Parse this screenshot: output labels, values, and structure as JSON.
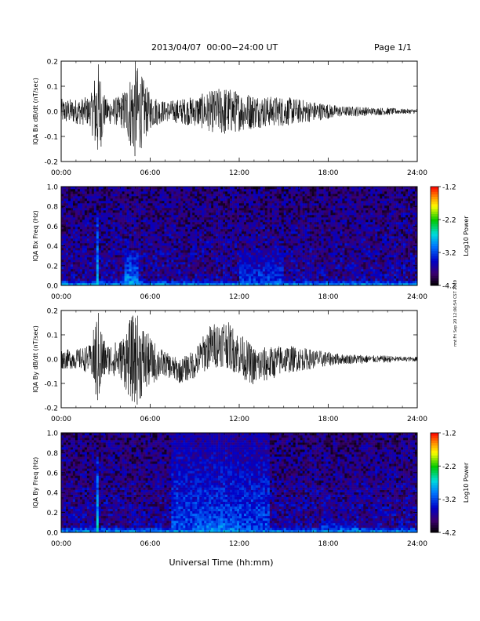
{
  "header": {
    "title": "2013/04/07  00:00−24:00 UT",
    "page": "Page 1/1",
    "xlabel": "Universal Time (hh:mm)",
    "side_stamp": "rmt Fri Sep 20 12:06:54 CST 2019"
  },
  "chart_data": [
    {
      "type": "line",
      "title": "",
      "ylabel": "IQA Bx dB/dt (nT/sec)",
      "xlabel": "",
      "xlim": [
        0,
        24
      ],
      "ylim": [
        -0.2,
        0.2
      ],
      "xticks": [
        "00:00",
        "06:00",
        "12:00",
        "18:00",
        "24:00"
      ],
      "yticks": [
        "-0.2",
        "-0.1",
        "0.0",
        "0.1",
        "0.2"
      ],
      "series": [
        {
          "x": [
            0,
            1,
            2,
            2.4,
            2.5,
            3,
            4,
            4.5,
            5,
            6,
            7,
            8,
            9,
            10,
            11,
            12,
            13,
            14,
            15,
            16,
            17,
            18,
            19,
            20,
            21,
            22,
            23,
            24
          ],
          "envelope": [
            0.05,
            0.05,
            0.06,
            0.2,
            0.2,
            0.05,
            0.06,
            0.12,
            0.2,
            0.07,
            0.04,
            0.05,
            0.06,
            0.08,
            0.1,
            0.08,
            0.07,
            0.06,
            0.06,
            0.05,
            0.04,
            0.03,
            0.02,
            0.02,
            0.015,
            0.015,
            0.01,
            0.01
          ]
        }
      ]
    },
    {
      "type": "heatmap",
      "title": "",
      "ylabel": "IQA Bx Freq (Hz)",
      "xlabel": "",
      "xlim": [
        0,
        24
      ],
      "ylim": [
        0.0,
        1.0
      ],
      "xticks": [
        "00:00",
        "06:00",
        "12:00",
        "18:00",
        "24:00"
      ],
      "yticks": [
        "0.0",
        "0.2",
        "0.4",
        "0.6",
        "0.8",
        "1.0"
      ],
      "colorbar": {
        "label": "Log10 Power",
        "range": [
          -4.2,
          -1.2
        ],
        "ticks": [
          "-1.2",
          "-2.2",
          "-3.2",
          "-4.2"
        ]
      },
      "features": [
        {
          "t_start": 2.3,
          "t_end": 2.5,
          "f_top": 0.7,
          "power": -2.6
        },
        {
          "t_start": 4.2,
          "t_end": 5.2,
          "f_top": 0.35,
          "power": -2.9
        },
        {
          "t_start": 12.0,
          "t_end": 15.0,
          "f_top": 0.35,
          "power": -3.2
        },
        {
          "t_start": 0.0,
          "t_end": 24.0,
          "f_top": 0.05,
          "power": -2.8
        }
      ]
    },
    {
      "type": "line",
      "title": "",
      "ylabel": "IQA By dB/dt (nT/sec)",
      "xlabel": "",
      "xlim": [
        0,
        24
      ],
      "ylim": [
        -0.2,
        0.2
      ],
      "xticks": [
        "00:00",
        "06:00",
        "12:00",
        "18:00",
        "24:00"
      ],
      "yticks": [
        "-0.2",
        "-0.1",
        "0.0",
        "0.1",
        "0.2"
      ],
      "series": [
        {
          "x": [
            0,
            1,
            2,
            2.4,
            2.5,
            3,
            4,
            4.5,
            5,
            6,
            7,
            8,
            9,
            10,
            11,
            12,
            13,
            14,
            15,
            16,
            17,
            18,
            19,
            20,
            21,
            22,
            23,
            24
          ],
          "envelope": [
            0.04,
            0.04,
            0.06,
            0.2,
            0.2,
            0.06,
            0.08,
            0.15,
            0.2,
            0.1,
            0.05,
            0.05,
            0.06,
            0.09,
            0.1,
            0.09,
            0.08,
            0.07,
            0.06,
            0.05,
            0.04,
            0.03,
            0.02,
            0.02,
            0.015,
            0.015,
            0.01,
            0.01
          ],
          "baseline": [
            0,
            0,
            0,
            0,
            0,
            0,
            0,
            0,
            0,
            -0.01,
            -0.02,
            -0.05,
            -0.02,
            0.05,
            0.07,
            0.02,
            -0.03,
            -0.02,
            0,
            0,
            0,
            0,
            0,
            0,
            0,
            0,
            0,
            0
          ]
        }
      ]
    },
    {
      "type": "heatmap",
      "title": "",
      "ylabel": "IQA By Freq (Hz)",
      "xlabel": "",
      "xlim": [
        0,
        24
      ],
      "ylim": [
        0.0,
        1.0
      ],
      "xticks": [
        "00:00",
        "06:00",
        "12:00",
        "18:00",
        "24:00"
      ],
      "yticks": [
        "0.0",
        "0.2",
        "0.4",
        "0.6",
        "0.8",
        "1.0"
      ],
      "colorbar": {
        "label": "Log10 Power",
        "range": [
          -4.2,
          -1.2
        ],
        "ticks": [
          "-1.2",
          "-2.2",
          "-3.2",
          "-4.2"
        ]
      },
      "features": [
        {
          "t_start": 2.3,
          "t_end": 2.5,
          "f_top": 0.75,
          "power": -2.6
        },
        {
          "t_start": 7.5,
          "t_end": 14.0,
          "f_top": 1.0,
          "power": -3.2
        },
        {
          "t_start": 9.0,
          "t_end": 12.0,
          "f_top": 0.25,
          "power": -2.9
        },
        {
          "t_start": 17.5,
          "t_end": 20.0,
          "f_top": 0.12,
          "power": -3.0
        },
        {
          "t_start": 0.0,
          "t_end": 24.0,
          "f_top": 0.05,
          "power": -2.8
        }
      ]
    }
  ]
}
